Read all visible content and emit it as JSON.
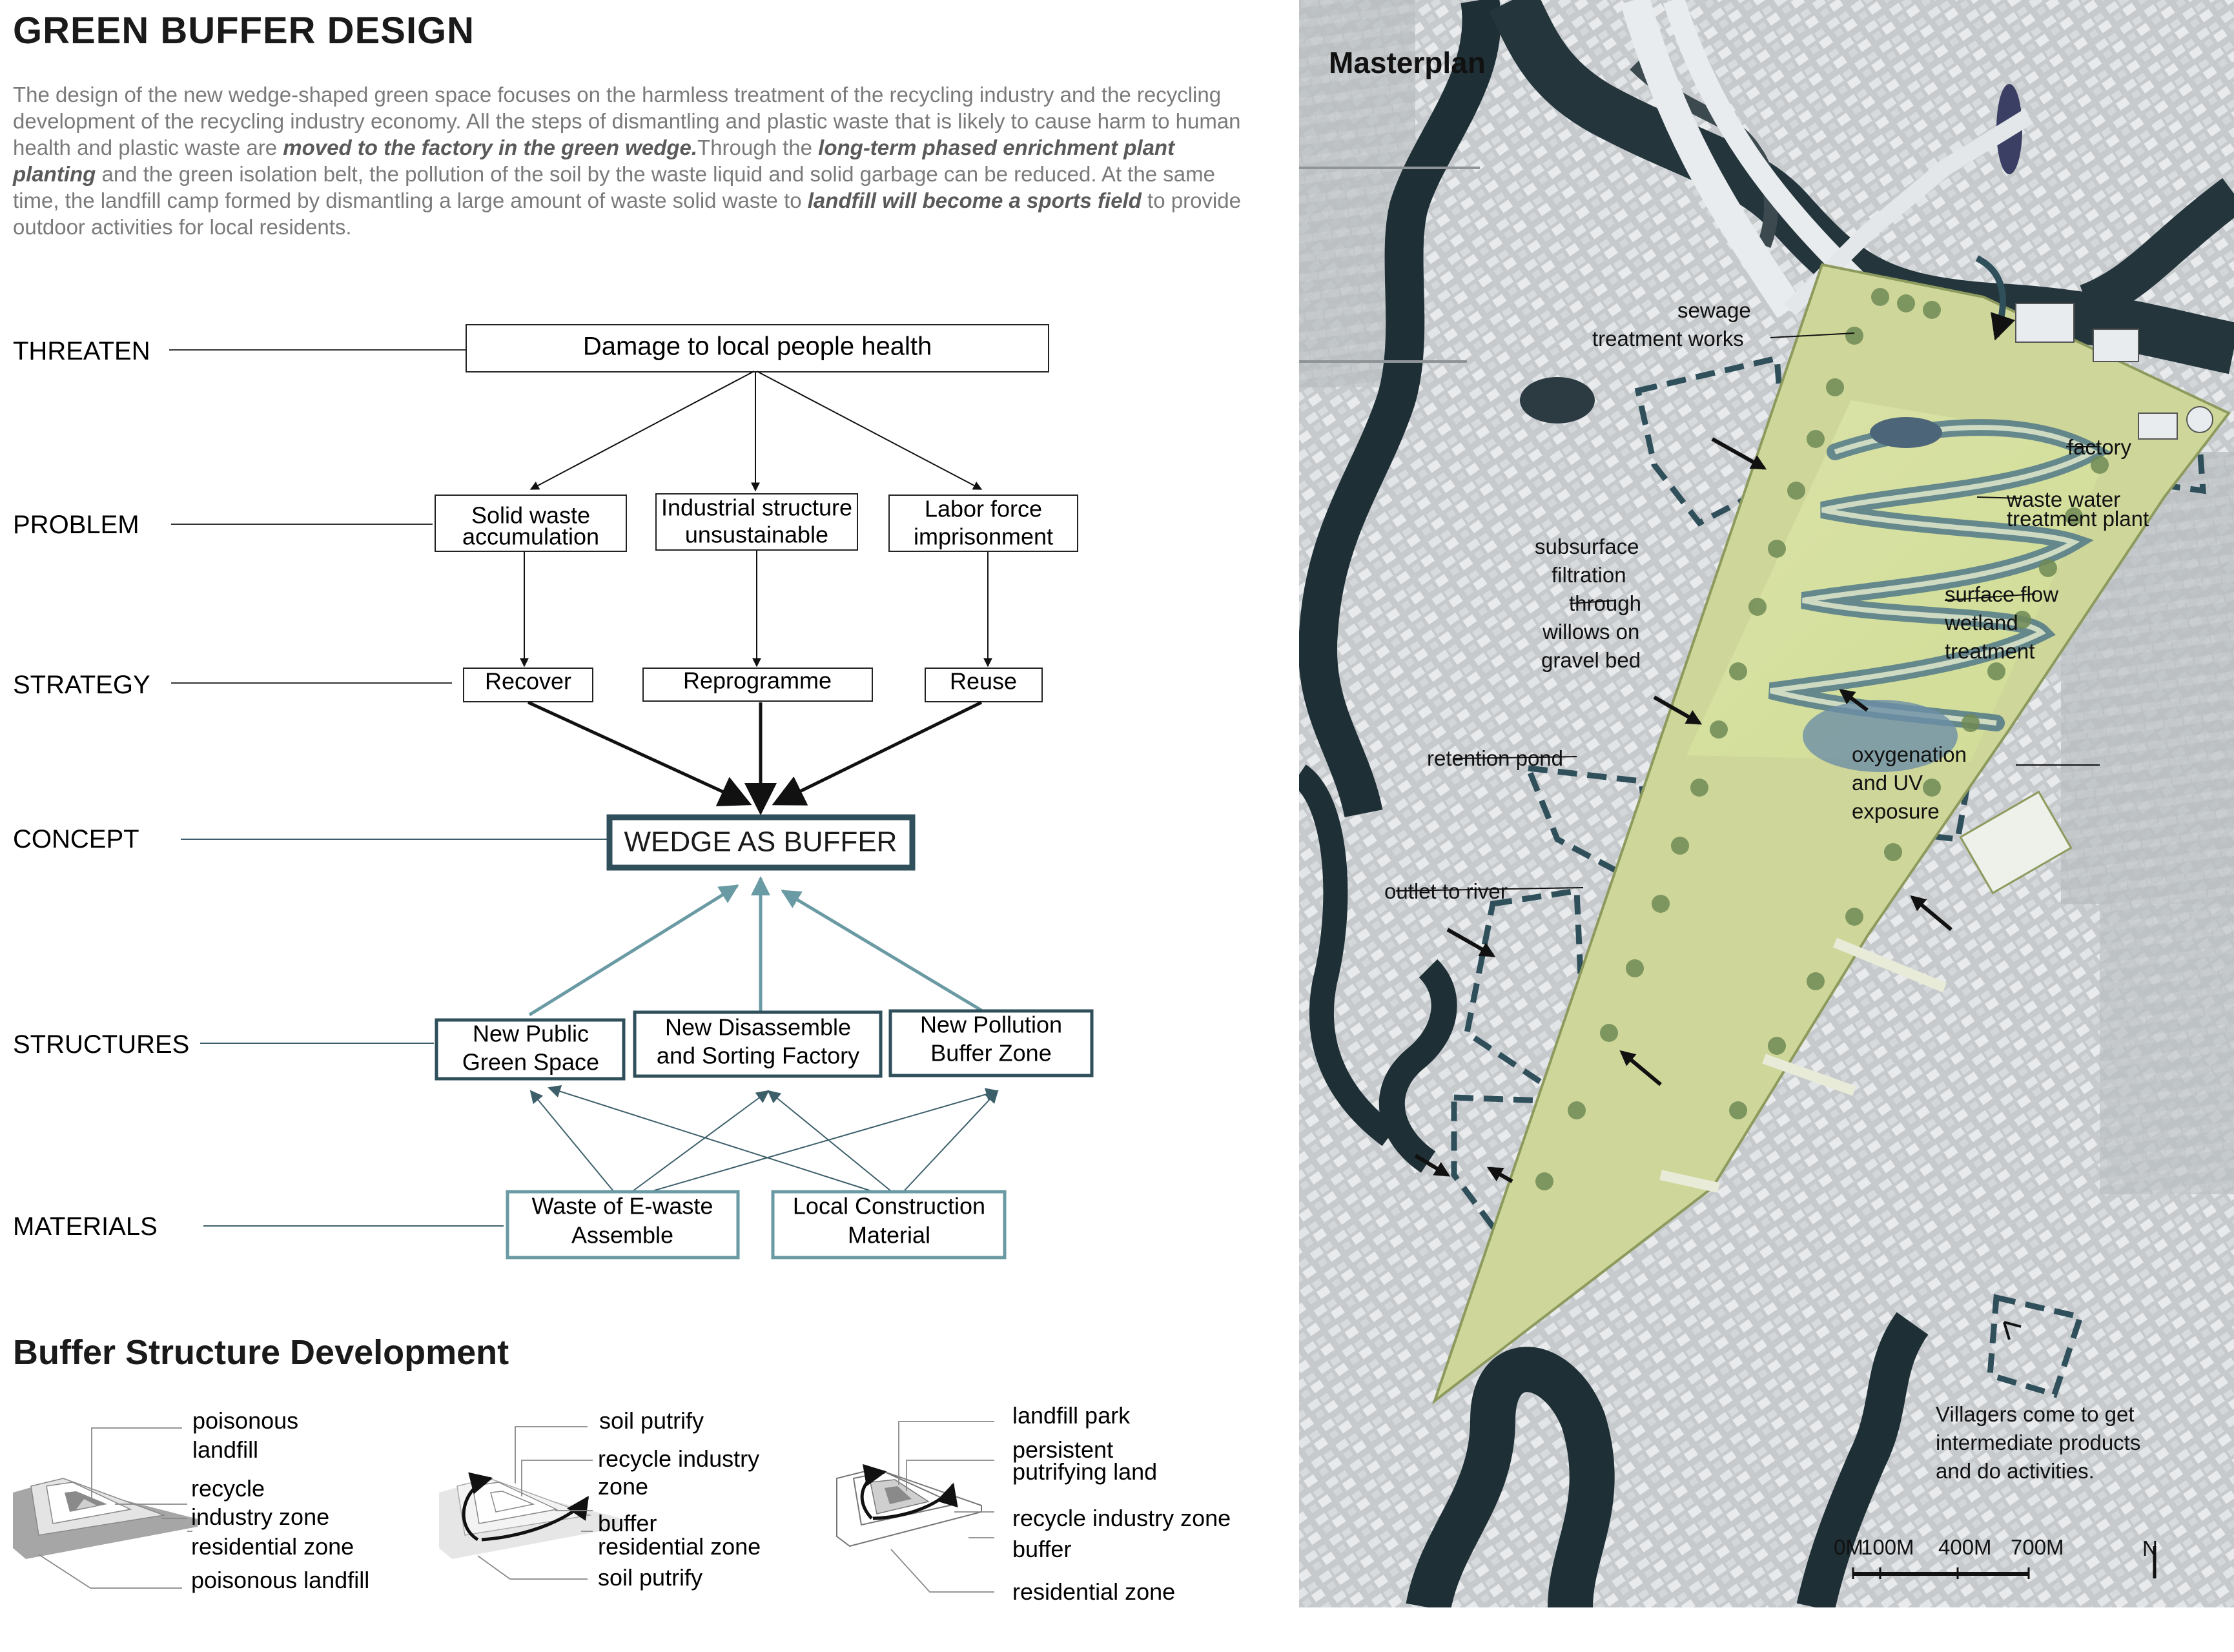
{
  "title": "GREEN BUFFER DESIGN",
  "intro": {
    "p1": "The design of the new wedge-shaped green space focuses on the harmless treatment of the recycling industry and the recycling development of the recycling industry economy. All the steps of dismantling and plastic waste that is likely to cause harm to human health and plastic waste are ",
    "b1": "moved to the factory in the green wedge.",
    "p2": "Through the ",
    "b2": "long-term phased enrichment plant planting",
    "p3": " and the green isolation belt, the pollution of the soil by the waste liquid and solid garbage can be reduced. At the same time, the landfill camp formed by dismantling a large amount of waste solid waste to ",
    "b3": "landfill will become a sports field",
    "p4": " to provide outdoor activities for local residents."
  },
  "rows": {
    "threaten": "THREATEN",
    "problem": "PROBLEM",
    "strategy": "STRATEGY",
    "concept": "CONCEPT",
    "structures": "STRUCTURES",
    "materials": "MATERIALS"
  },
  "nodes": {
    "threat": "Damage to local people health",
    "problem1_l1": "Solid waste",
    "problem1_l2": "accumulation",
    "problem2_l1": "Industrial structure",
    "problem2_l2": "unsustainable",
    "problem3_l1": "Labor force",
    "problem3_l2": "imprisonment",
    "strategy1": "Recover",
    "strategy2": "Reprogramme",
    "strategy3": "Reuse",
    "concept": "WEDGE AS BUFFER",
    "structure1_l1": "New Public",
    "structure1_l2": "Green Space",
    "structure2_l1": "New Disassemble",
    "structure2_l2": "and Sorting Factory",
    "structure3_l1": "New Pollution",
    "structure3_l2": "Buffer Zone",
    "material1_l1": "Waste of E-waste",
    "material1_l2": "Assemble",
    "material2_l1": "Local Construction",
    "material2_l2": "Material"
  },
  "colors": {
    "teal_dark": "#2f4f5b",
    "teal_light": "#6a9aa3",
    "text_gray": "#7a7a7a"
  },
  "buffer_section": {
    "title": "Buffer Structure Development",
    "d1": {
      "poisonous_l1": "poisonous",
      "poisonous_l2": "landfill",
      "recycle_l1": "recycle",
      "recycle_l2": "industry zone",
      "residential": "residential zone",
      "poisonous_landfill": "poisonous landfill"
    },
    "d2": {
      "soil_putrify_top": "soil putrify",
      "recycle_l1": "recycle industry",
      "recycle_l2": "zone",
      "buffer": "buffer",
      "residential": "residential zone",
      "soil_putrify_bottom": "soil putrify"
    },
    "d3": {
      "landfill_park": "landfill park",
      "persistent_l1": "persistent",
      "persistent_l2": "putrifying land",
      "recycle": "recycle industry zone",
      "buffer": "buffer",
      "residential": "residential zone"
    }
  },
  "masterplan": {
    "title": "Masterplan",
    "sewage_l1": "sewage",
    "sewage_l2": "treatment works",
    "factory": "factory",
    "wastewater_l1": "waste water",
    "wastewater_l2": "treatment plant",
    "subsurface_l1": "subsurface",
    "subsurface_l2": "filtration",
    "subsurface_l3": "through",
    "subsurface_l4": "willows on",
    "subsurface_l5": "gravel bed",
    "surface_l1": "surface flow",
    "surface_l2": "wetland",
    "surface_l3": "treatment",
    "retention": "retention pond",
    "oxygen_l1": "oxygenation",
    "oxygen_l2": "and UV",
    "oxygen_l3": "exposure",
    "outlet": "outlet to river",
    "villagers_l1": "Villagers come to get",
    "villagers_l2": "intermediate products",
    "villagers_l3": "and do activities.",
    "scale_0": "0M",
    "scale_100": "100M",
    "scale_400": "400M",
    "scale_700": "700M",
    "north": "N"
  }
}
